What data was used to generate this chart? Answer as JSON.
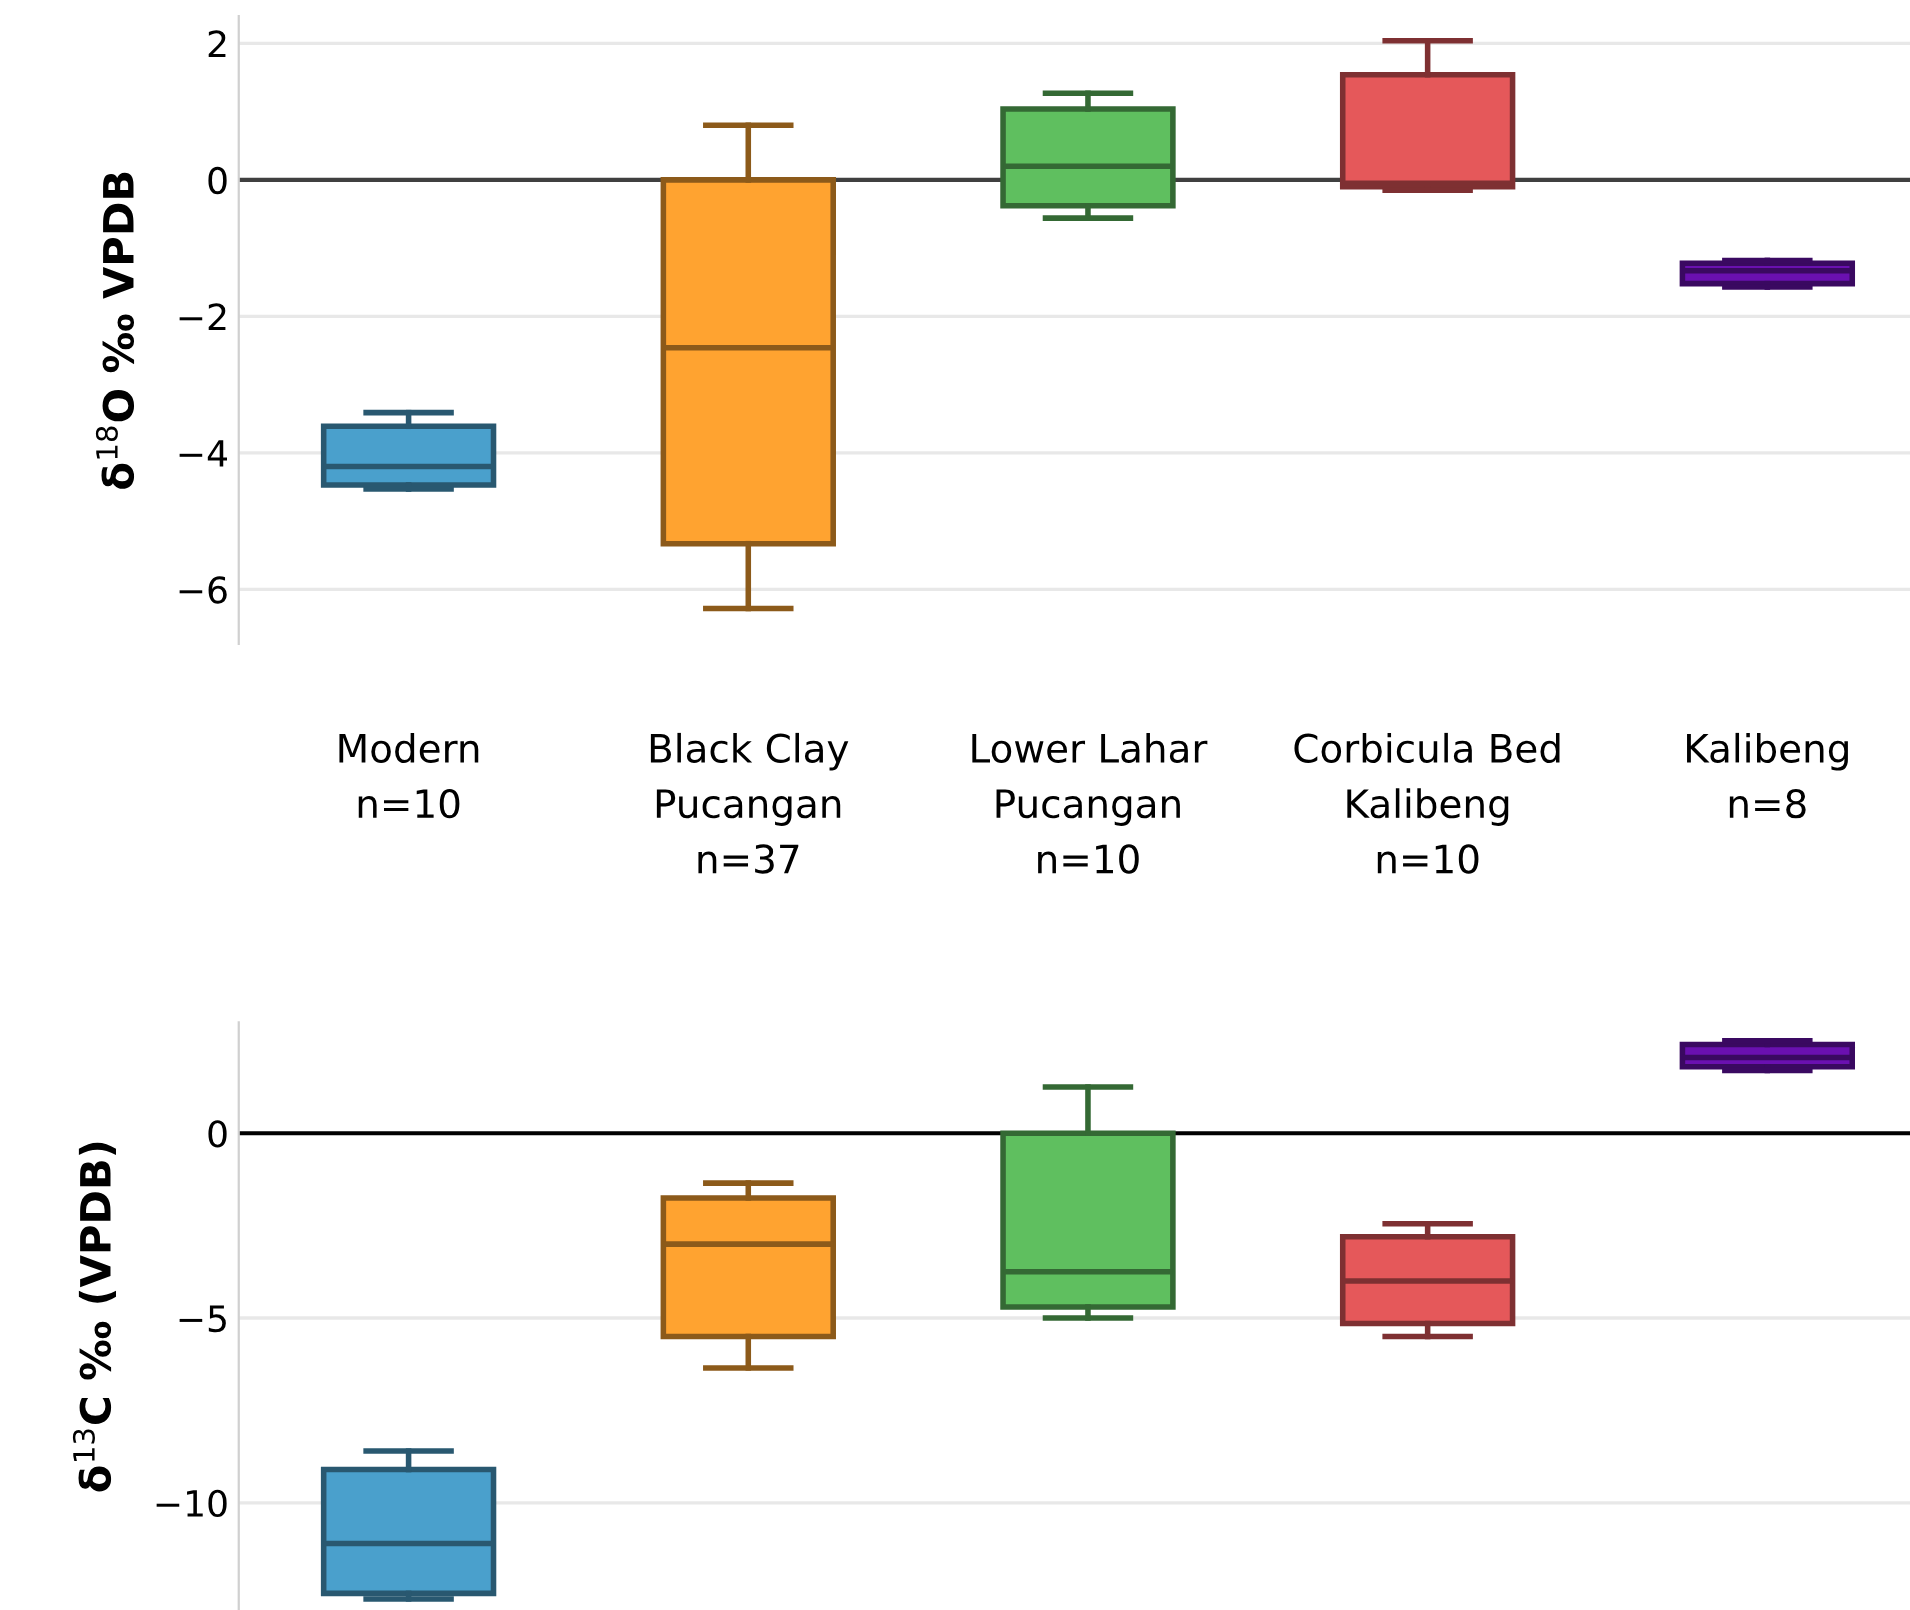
{
  "chart_data": [
    {
      "type": "box",
      "ylabel": "δ$^{18}$O ‰ VPDB",
      "categories": [
        "Modern\nn=10",
        "Black Clay\nPucangan\nn=37",
        "Lower Lahar\nPucangan\nn=10",
        "Corbicula Bed\nKalibeng\nn=10",
        "Kalibeng\nn=8"
      ],
      "colors": [
        "#4aa0cc",
        "#ffa330",
        "#5fbf5f",
        "#e5585a",
        "#6a10b0"
      ],
      "boxes": [
        {
          "low": -4.53,
          "q1": -4.47,
          "median": -4.2,
          "q3": -3.61,
          "high": -3.41
        },
        {
          "low": -6.28,
          "q1": -5.33,
          "median": -2.46,
          "q3": 0.0,
          "high": 0.8
        },
        {
          "low": -0.56,
          "q1": -0.38,
          "median": 0.2,
          "q3": 1.04,
          "high": 1.27
        },
        {
          "low": -0.15,
          "q1": -0.1,
          "median": -0.05,
          "q3": 1.54,
          "high": 2.04
        },
        {
          "low": -1.57,
          "q1": -1.52,
          "median": -1.33,
          "q3": -1.22,
          "high": -1.18
        }
      ],
      "ylim": [
        -6.8,
        2.4
      ],
      "yticks": [
        -6,
        -4,
        -2,
        0,
        2
      ],
      "grid": "y",
      "ref_lines": [
        {
          "axis": "y",
          "value": 0,
          "color": "#404040"
        }
      ]
    },
    {
      "type": "box",
      "ylabel": "δ$^{13}$C ‰ (VPDB)",
      "categories": [
        null,
        null,
        null,
        null,
        null
      ],
      "colors": [
        "#4aa0cc",
        "#ffa330",
        "#5fbf5f",
        "#e5585a",
        "#6a10b0"
      ],
      "boxes": [
        {
          "low": -12.6,
          "q1": -12.45,
          "median": -11.1,
          "q3": -9.1,
          "high": -8.6
        },
        {
          "low": -6.35,
          "q1": -5.5,
          "median": -3.0,
          "q3": -1.75,
          "high": -1.35
        },
        {
          "low": -5.0,
          "q1": -4.7,
          "median": -3.75,
          "q3": 0.0,
          "high": 1.25
        },
        {
          "low": -5.5,
          "q1": -5.15,
          "median": -4.0,
          "q3": -2.8,
          "high": -2.45
        },
        {
          "low": 1.7,
          "q1": 1.8,
          "median": 2.05,
          "q3": 2.4,
          "high": 2.5
        }
      ],
      "ylim": [
        -12.9,
        3.0
      ],
      "yticks": [
        -10,
        -5,
        0
      ],
      "grid": "y",
      "tick_labels": "y",
      "ref_lines": [
        {
          "axis": "y",
          "value": 0,
          "color": "#000000"
        }
      ]
    }
  ]
}
